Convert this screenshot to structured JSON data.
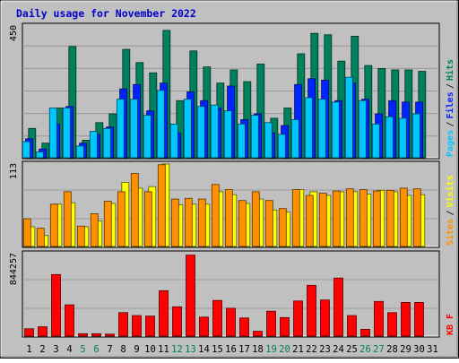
{
  "title": "Daily usage for November 2022",
  "colors": {
    "background": "#c0c0c0",
    "plot_bg": "#c0c0c0",
    "title": "#0000cc",
    "hits": "#00805c",
    "files": "#0024ff",
    "pages": "#00c8ff",
    "visits": "#ffff00",
    "sites": "#ff9000",
    "kbytes": "#ff0000",
    "weekday_label": "#000000",
    "weekend_label": "#00805c"
  },
  "chart_data": [
    {
      "type": "bar",
      "panel": "hits-files-pages",
      "ymax_label": "450",
      "ymax": 450,
      "legend": [
        "Pages",
        "Files",
        "Hits"
      ],
      "categories": [
        "1",
        "2",
        "3",
        "4",
        "5",
        "6",
        "7",
        "8",
        "9",
        "10",
        "11",
        "12",
        "13",
        "14",
        "15",
        "16",
        "17",
        "18",
        "19",
        "20",
        "21",
        "22",
        "23",
        "24",
        "25",
        "26",
        "27",
        "28",
        "29",
        "30",
        "31"
      ],
      "series": [
        {
          "name": "Hits",
          "values": [
            100,
            50,
            170,
            380,
            60,
            120,
            150,
            370,
            325,
            290,
            435,
            195,
            365,
            310,
            255,
            300,
            260,
            320,
            135,
            170,
            355,
            425,
            420,
            330,
            415,
            315,
            305,
            300,
            300,
            295,
            0
          ]
        },
        {
          "name": "Files",
          "values": [
            65,
            30,
            115,
            175,
            50,
            80,
            105,
            235,
            250,
            160,
            255,
            85,
            225,
            195,
            170,
            245,
            130,
            150,
            85,
            110,
            250,
            270,
            265,
            195,
            255,
            200,
            150,
            195,
            190,
            190,
            0
          ]
        },
        {
          "name": "Pages",
          "values": [
            55,
            20,
            170,
            170,
            40,
            90,
            100,
            200,
            200,
            145,
            230,
            115,
            200,
            175,
            180,
            160,
            115,
            145,
            120,
            80,
            130,
            205,
            200,
            190,
            275,
            195,
            115,
            140,
            135,
            150,
            0
          ]
        }
      ]
    },
    {
      "type": "bar",
      "panel": "visits-sites",
      "ymax_label": "113",
      "ymax": 113,
      "legend": [
        "Sites",
        "Visits"
      ],
      "categories": [
        "1",
        "2",
        "3",
        "4",
        "5",
        "6",
        "7",
        "8",
        "9",
        "10",
        "11",
        "12",
        "13",
        "14",
        "15",
        "16",
        "17",
        "18",
        "19",
        "20",
        "21",
        "22",
        "23",
        "24",
        "25",
        "26",
        "27",
        "28",
        "29",
        "30",
        "31"
      ],
      "series": [
        {
          "name": "Visits",
          "values": [
            27,
            15,
            58,
            60,
            27,
            35,
            59,
            88,
            80,
            82,
            113,
            57,
            58,
            58,
            75,
            71,
            59,
            65,
            50,
            47,
            78,
            75,
            70,
            75,
            75,
            72,
            77,
            75,
            70,
            71,
            0
          ]
        },
        {
          "name": "Sites",
          "values": [
            38,
            25,
            58,
            75,
            28,
            45,
            62,
            75,
            100,
            75,
            112,
            65,
            66,
            65,
            85,
            78,
            63,
            75,
            63,
            52,
            78,
            70,
            73,
            76,
            79,
            78,
            76,
            77,
            80,
            79,
            0
          ]
        }
      ]
    },
    {
      "type": "bar",
      "panel": "kbytes",
      "ymax_label": "844257",
      "ymax": 844257,
      "legend": [
        "KB F"
      ],
      "categories": [
        "1",
        "2",
        "3",
        "4",
        "5",
        "6",
        "7",
        "8",
        "9",
        "10",
        "11",
        "12",
        "13",
        "14",
        "15",
        "16",
        "17",
        "18",
        "19",
        "20",
        "21",
        "22",
        "23",
        "24",
        "25",
        "26",
        "27",
        "28",
        "29",
        "30",
        "31"
      ],
      "series": [
        {
          "name": "KB F",
          "values": [
            75000,
            95000,
            630000,
            320000,
            25000,
            25000,
            20000,
            240000,
            210000,
            205000,
            465000,
            300000,
            830000,
            195000,
            365000,
            285000,
            185000,
            50000,
            255000,
            190000,
            360000,
            520000,
            370000,
            595000,
            210000,
            70000,
            355000,
            240000,
            345000,
            345000,
            0
          ]
        }
      ]
    }
  ],
  "weekend_days": [
    "5",
    "6",
    "12",
    "13",
    "19",
    "20",
    "26",
    "27"
  ]
}
